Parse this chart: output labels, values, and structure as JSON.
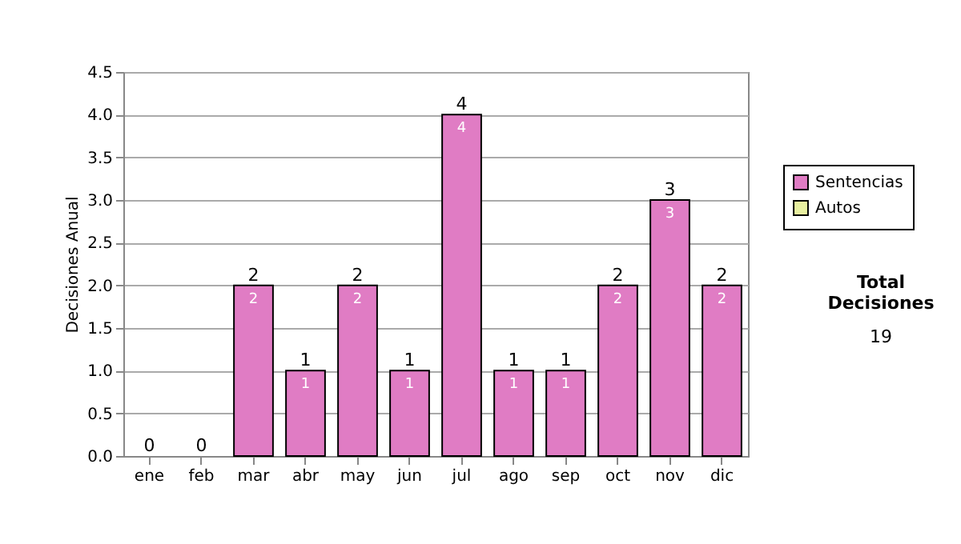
{
  "chart_data": {
    "type": "bar",
    "stacked": true,
    "ylabel": "Decisiones Anual",
    "categories": [
      "ene",
      "feb",
      "mar",
      "abr",
      "may",
      "jun",
      "jul",
      "ago",
      "sep",
      "oct",
      "nov",
      "dic"
    ],
    "series": [
      {
        "name": "Sentencias",
        "color": "#e07cc4",
        "values": [
          0,
          0,
          2,
          1,
          2,
          1,
          4,
          1,
          1,
          2,
          3,
          2
        ],
        "value_labels": [
          null,
          null,
          "2",
          "1",
          "2",
          "1",
          "4",
          "1",
          "1",
          "2",
          "3",
          "2"
        ]
      },
      {
        "name": "Autos",
        "color": "#e8f0a0",
        "values": [
          0,
          0,
          0,
          0,
          0,
          0,
          0,
          0,
          0,
          0,
          0,
          0
        ]
      }
    ],
    "totals": [
      "0",
      "0",
      "2",
      "1",
      "2",
      "1",
      "4",
      "1",
      "1",
      "2",
      "3",
      "2"
    ],
    "ylim": [
      0,
      4.5
    ],
    "yticks": [
      {
        "value": 0,
        "label": "0.0"
      },
      0.5,
      {
        "value": 1,
        "label": "1.0"
      },
      1.5,
      {
        "value": 2,
        "label": "2.0"
      },
      2.5,
      {
        "value": 3,
        "label": "3.0"
      },
      3.5,
      {
        "value": 4,
        "label": "4.0"
      },
      4.5
    ],
    "grid": "y",
    "legend": "right",
    "annotations": [
      "Total Decisiones",
      "19"
    ]
  }
}
